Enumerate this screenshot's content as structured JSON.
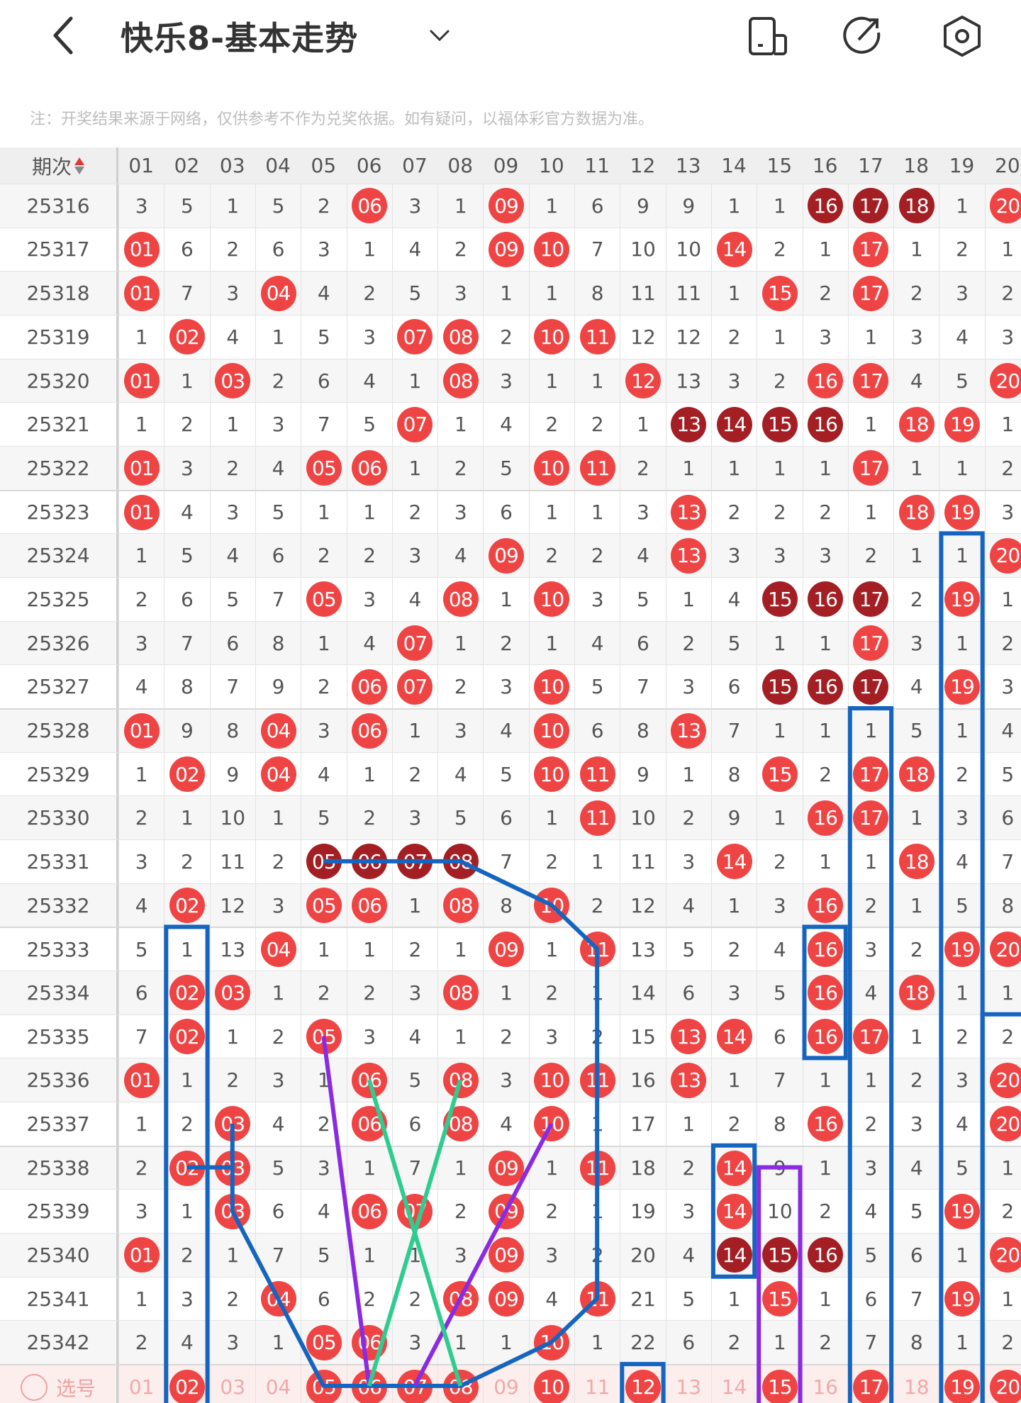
{
  "header": {
    "title": "快乐8-基本走势",
    "back_icon": "chevron-left-icon",
    "dropdown_icon": "chevron-down-icon",
    "icons": [
      "phone-layout-icon",
      "share-icon",
      "settings-icon"
    ]
  },
  "note": "注：开奖结果来源于网络，仅供参考不作为兑奖依据。如有疑问，以福体彩官方数据为准。",
  "table": {
    "issue_header": "期次",
    "columns": [
      "01",
      "02",
      "03",
      "04",
      "05",
      "06",
      "07",
      "08",
      "09",
      "10",
      "11",
      "12",
      "13",
      "14",
      "15",
      "16",
      "17",
      "18",
      "19",
      "20"
    ],
    "rows": [
      {
        "issue": "25316",
        "values": [
          "3",
          "5",
          "1",
          "5",
          "2",
          "06",
          "3",
          "1",
          "09",
          "1",
          "6",
          "9",
          "9",
          "1",
          "1",
          "16",
          "17",
          "18",
          "1",
          "20"
        ],
        "hit": [
          6,
          9,
          20
        ],
        "streak": [
          16,
          17,
          18
        ]
      },
      {
        "issue": "25317",
        "values": [
          "01",
          "6",
          "2",
          "6",
          "3",
          "1",
          "4",
          "2",
          "09",
          "10",
          "7",
          "10",
          "10",
          "14",
          "2",
          "1",
          "17",
          "1",
          "2",
          "1"
        ],
        "hit": [
          1,
          9,
          10,
          14,
          17
        ],
        "streak": []
      },
      {
        "issue": "25318",
        "values": [
          "01",
          "7",
          "3",
          "04",
          "4",
          "2",
          "5",
          "3",
          "1",
          "1",
          "8",
          "11",
          "11",
          "1",
          "15",
          "2",
          "17",
          "2",
          "3",
          "2"
        ],
        "hit": [
          1,
          4,
          15,
          17
        ],
        "streak": []
      },
      {
        "issue": "25319",
        "values": [
          "1",
          "02",
          "4",
          "1",
          "5",
          "3",
          "07",
          "08",
          "2",
          "10",
          "11",
          "12",
          "12",
          "2",
          "1",
          "3",
          "1",
          "3",
          "4",
          "3"
        ],
        "hit": [
          2,
          7,
          8,
          10,
          11
        ],
        "streak": []
      },
      {
        "issue": "25320",
        "values": [
          "01",
          "1",
          "03",
          "2",
          "6",
          "4",
          "1",
          "08",
          "3",
          "1",
          "1",
          "12",
          "13",
          "3",
          "2",
          "16",
          "17",
          "4",
          "5",
          "20"
        ],
        "hit": [
          1,
          3,
          8,
          12,
          16,
          17,
          20
        ],
        "streak": []
      },
      {
        "issue": "25321",
        "values": [
          "1",
          "2",
          "1",
          "3",
          "7",
          "5",
          "07",
          "1",
          "4",
          "2",
          "2",
          "1",
          "13",
          "14",
          "15",
          "16",
          "1",
          "18",
          "19",
          "1"
        ],
        "hit": [
          7,
          18,
          19
        ],
        "streak": [
          13,
          14,
          15,
          16
        ]
      },
      {
        "issue": "25322",
        "values": [
          "01",
          "3",
          "2",
          "4",
          "05",
          "06",
          "1",
          "2",
          "5",
          "10",
          "11",
          "2",
          "1",
          "1",
          "1",
          "1",
          "17",
          "1",
          "1",
          "2"
        ],
        "hit": [
          1,
          5,
          6,
          10,
          11,
          17
        ],
        "streak": []
      },
      {
        "issue": "25323",
        "values": [
          "01",
          "4",
          "3",
          "5",
          "1",
          "1",
          "2",
          "3",
          "6",
          "1",
          "1",
          "3",
          "13",
          "2",
          "2",
          "2",
          "1",
          "18",
          "19",
          "3"
        ],
        "hit": [
          1,
          13,
          18,
          19
        ],
        "streak": []
      },
      {
        "issue": "25324",
        "values": [
          "1",
          "5",
          "4",
          "6",
          "2",
          "2",
          "3",
          "4",
          "09",
          "2",
          "2",
          "4",
          "13",
          "3",
          "3",
          "3",
          "2",
          "1",
          "1",
          "20"
        ],
        "hit": [
          9,
          13,
          20
        ],
        "streak": []
      },
      {
        "issue": "25325",
        "values": [
          "2",
          "6",
          "5",
          "7",
          "05",
          "3",
          "4",
          "08",
          "1",
          "10",
          "3",
          "5",
          "1",
          "4",
          "15",
          "16",
          "17",
          "2",
          "19",
          "1"
        ],
        "hit": [
          5,
          8,
          10,
          19
        ],
        "streak": [
          15,
          16,
          17
        ]
      },
      {
        "issue": "25326",
        "values": [
          "3",
          "7",
          "6",
          "8",
          "1",
          "4",
          "07",
          "1",
          "2",
          "1",
          "4",
          "6",
          "2",
          "5",
          "1",
          "1",
          "17",
          "3",
          "1",
          "2"
        ],
        "hit": [
          7,
          17
        ],
        "streak": []
      },
      {
        "issue": "25327",
        "values": [
          "4",
          "8",
          "7",
          "9",
          "2",
          "06",
          "07",
          "2",
          "3",
          "10",
          "5",
          "7",
          "3",
          "6",
          "15",
          "16",
          "17",
          "4",
          "19",
          "3"
        ],
        "hit": [
          6,
          7,
          10,
          19
        ],
        "streak": [
          15,
          16,
          17
        ]
      },
      {
        "issue": "25328",
        "values": [
          "01",
          "9",
          "8",
          "04",
          "3",
          "06",
          "1",
          "3",
          "4",
          "10",
          "6",
          "8",
          "13",
          "7",
          "1",
          "1",
          "1",
          "5",
          "1",
          "4"
        ],
        "hit": [
          1,
          4,
          6,
          10,
          13
        ],
        "streak": []
      },
      {
        "issue": "25329",
        "values": [
          "1",
          "02",
          "9",
          "04",
          "4",
          "1",
          "2",
          "4",
          "5",
          "10",
          "11",
          "9",
          "1",
          "8",
          "15",
          "2",
          "17",
          "18",
          "2",
          "5"
        ],
        "hit": [
          2,
          4,
          10,
          11,
          15,
          17,
          18
        ],
        "streak": []
      },
      {
        "issue": "25330",
        "values": [
          "2",
          "1",
          "10",
          "1",
          "5",
          "2",
          "3",
          "5",
          "6",
          "1",
          "11",
          "10",
          "2",
          "9",
          "1",
          "16",
          "17",
          "1",
          "3",
          "6"
        ],
        "hit": [
          11,
          16,
          17
        ],
        "streak": []
      },
      {
        "issue": "25331",
        "values": [
          "3",
          "2",
          "11",
          "2",
          "05",
          "06",
          "07",
          "08",
          "7",
          "2",
          "1",
          "11",
          "3",
          "14",
          "2",
          "1",
          "1",
          "18",
          "4",
          "7"
        ],
        "hit": [
          14,
          18
        ],
        "streak": [
          5,
          6,
          7,
          8
        ]
      },
      {
        "issue": "25332",
        "values": [
          "4",
          "02",
          "12",
          "3",
          "05",
          "06",
          "1",
          "08",
          "8",
          "10",
          "2",
          "12",
          "4",
          "1",
          "3",
          "16",
          "2",
          "1",
          "5",
          "8"
        ],
        "hit": [
          2,
          5,
          6,
          8,
          10,
          16
        ],
        "streak": []
      },
      {
        "issue": "25333",
        "values": [
          "5",
          "1",
          "13",
          "04",
          "1",
          "1",
          "2",
          "1",
          "09",
          "1",
          "11",
          "13",
          "5",
          "2",
          "4",
          "16",
          "3",
          "2",
          "19",
          "20"
        ],
        "hit": [
          4,
          9,
          11,
          16,
          19,
          20
        ],
        "streak": []
      },
      {
        "issue": "25334",
        "values": [
          "6",
          "02",
          "03",
          "1",
          "2",
          "2",
          "3",
          "08",
          "1",
          "2",
          "1",
          "14",
          "6",
          "3",
          "5",
          "16",
          "4",
          "18",
          "1",
          "1"
        ],
        "hit": [
          2,
          3,
          8,
          16,
          18
        ],
        "streak": []
      },
      {
        "issue": "25335",
        "values": [
          "7",
          "02",
          "1",
          "2",
          "05",
          "3",
          "4",
          "1",
          "2",
          "3",
          "2",
          "15",
          "13",
          "14",
          "6",
          "16",
          "17",
          "1",
          "2",
          "2"
        ],
        "hit": [
          2,
          5,
          13,
          14,
          16,
          17
        ],
        "streak": []
      },
      {
        "issue": "25336",
        "values": [
          "01",
          "1",
          "2",
          "3",
          "1",
          "06",
          "5",
          "08",
          "3",
          "10",
          "11",
          "16",
          "13",
          "1",
          "7",
          "1",
          "1",
          "2",
          "3",
          "20"
        ],
        "hit": [
          1,
          6,
          8,
          10,
          11,
          13,
          20
        ],
        "streak": []
      },
      {
        "issue": "25337",
        "values": [
          "1",
          "2",
          "03",
          "4",
          "2",
          "06",
          "6",
          "08",
          "4",
          "10",
          "1",
          "17",
          "1",
          "2",
          "8",
          "16",
          "2",
          "3",
          "4",
          "20"
        ],
        "hit": [
          3,
          6,
          8,
          10,
          16,
          20
        ],
        "streak": []
      },
      {
        "issue": "25338",
        "values": [
          "2",
          "02",
          "03",
          "5",
          "3",
          "1",
          "7",
          "1",
          "09",
          "1",
          "11",
          "18",
          "2",
          "14",
          "9",
          "1",
          "3",
          "4",
          "5",
          "1"
        ],
        "hit": [
          2,
          3,
          9,
          11,
          14
        ],
        "streak": []
      },
      {
        "issue": "25339",
        "values": [
          "3",
          "1",
          "03",
          "6",
          "4",
          "06",
          "07",
          "2",
          "09",
          "2",
          "1",
          "19",
          "3",
          "14",
          "10",
          "2",
          "4",
          "5",
          "19",
          "2"
        ],
        "hit": [
          3,
          6,
          7,
          9,
          14,
          19
        ],
        "streak": []
      },
      {
        "issue": "25340",
        "values": [
          "01",
          "2",
          "1",
          "7",
          "5",
          "1",
          "1",
          "3",
          "09",
          "3",
          "2",
          "20",
          "4",
          "14",
          "15",
          "16",
          "5",
          "6",
          "1",
          "20"
        ],
        "hit": [
          1,
          9,
          20
        ],
        "streak": [
          14,
          15,
          16
        ]
      },
      {
        "issue": "25341",
        "values": [
          "1",
          "3",
          "2",
          "04",
          "6",
          "2",
          "2",
          "08",
          "09",
          "4",
          "11",
          "21",
          "5",
          "1",
          "15",
          "1",
          "6",
          "7",
          "19",
          "1"
        ],
        "hit": [
          4,
          8,
          9,
          11,
          15,
          19
        ],
        "streak": []
      },
      {
        "issue": "25342",
        "values": [
          "2",
          "4",
          "3",
          "1",
          "05",
          "06",
          "3",
          "1",
          "1",
          "10",
          "1",
          "22",
          "6",
          "2",
          "1",
          "2",
          "7",
          "8",
          "1",
          "2"
        ],
        "hit": [
          5,
          6,
          10
        ],
        "streak": []
      }
    ],
    "select_row": {
      "label": "选号",
      "values": [
        "01",
        "02",
        "03",
        "04",
        "05",
        "06",
        "07",
        "08",
        "09",
        "10",
        "11",
        "12",
        "13",
        "14",
        "15",
        "16",
        "17",
        "18",
        "19",
        "20"
      ],
      "selected": [
        2,
        5,
        6,
        7,
        8,
        10,
        12,
        15,
        17,
        19,
        20
      ]
    }
  },
  "colors": {
    "hit": "#ef4444",
    "streak": "#a31f24",
    "line_blue": "#1565c0",
    "line_purple": "#8a2be2",
    "line_green": "#2ecc8f",
    "select_bg": "#fdeeee"
  }
}
